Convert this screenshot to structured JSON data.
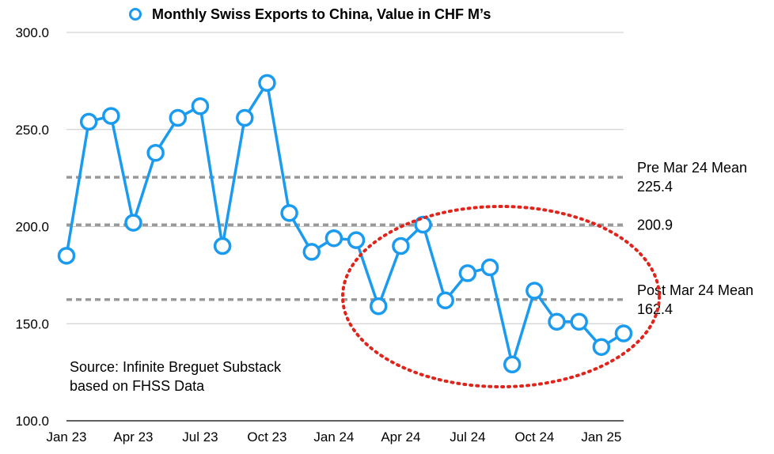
{
  "chart_data": {
    "type": "line",
    "legend": {
      "label": "Monthly Swiss Exports to China, Value in CHF M’s",
      "position": "top"
    },
    "colors": {
      "series": "#1a9bf0",
      "mean_lines": "#999999",
      "ellipse": "#e0241c",
      "gridlines": "#c8c8c8"
    },
    "y_ticks": [
      "300.0",
      "250.0",
      "200.0",
      "150.0",
      "100.0"
    ],
    "ylim": [
      100,
      300
    ],
    "x_ticks": [
      "Jan 23",
      "Apr 23",
      "Jul 23",
      "Oct 23",
      "Jan 24",
      "Apr 24",
      "Jul 24",
      "Oct 24",
      "Jan 25"
    ],
    "grid": true,
    "categories": [
      "Jan 23",
      "Feb 23",
      "Mar 23",
      "Apr 23",
      "May 23",
      "Jun 23",
      "Jul 23",
      "Aug 23",
      "Sep 23",
      "Oct 23",
      "Nov 23",
      "Dec 23",
      "Jan 24",
      "Feb 24",
      "Mar 24",
      "Apr 24",
      "May 24",
      "Jun 24",
      "Jul 24",
      "Aug 24",
      "Sep 24",
      "Oct 24",
      "Nov 24",
      "Dec 24",
      "Jan 25",
      "Feb 25"
    ],
    "series": [
      {
        "name": "Monthly Swiss Exports to China, Value in CHF M’s",
        "values": [
          185,
          254,
          257,
          202,
          238,
          256,
          262,
          190,
          256,
          274,
          207,
          187,
          194,
          193,
          159,
          190,
          201,
          162,
          176,
          179,
          129,
          167,
          151,
          151,
          138,
          145
        ]
      }
    ],
    "reference_lines": [
      {
        "value": 225.4,
        "label_lines": [
          "Pre Mar 24 Mean",
          "225.4"
        ]
      },
      {
        "value": 200.9,
        "label_lines": [
          "200.9"
        ]
      },
      {
        "value": 162.4,
        "label_lines": [
          "Post Mar 24 Mean",
          "162.4"
        ]
      }
    ],
    "highlight": {
      "shape": "dotted-ellipse",
      "from": "Mar 24",
      "to": "Feb 25"
    },
    "annotations": [
      "Source: Infinite Breguet Substack",
      "based on FHSS Data"
    ]
  }
}
